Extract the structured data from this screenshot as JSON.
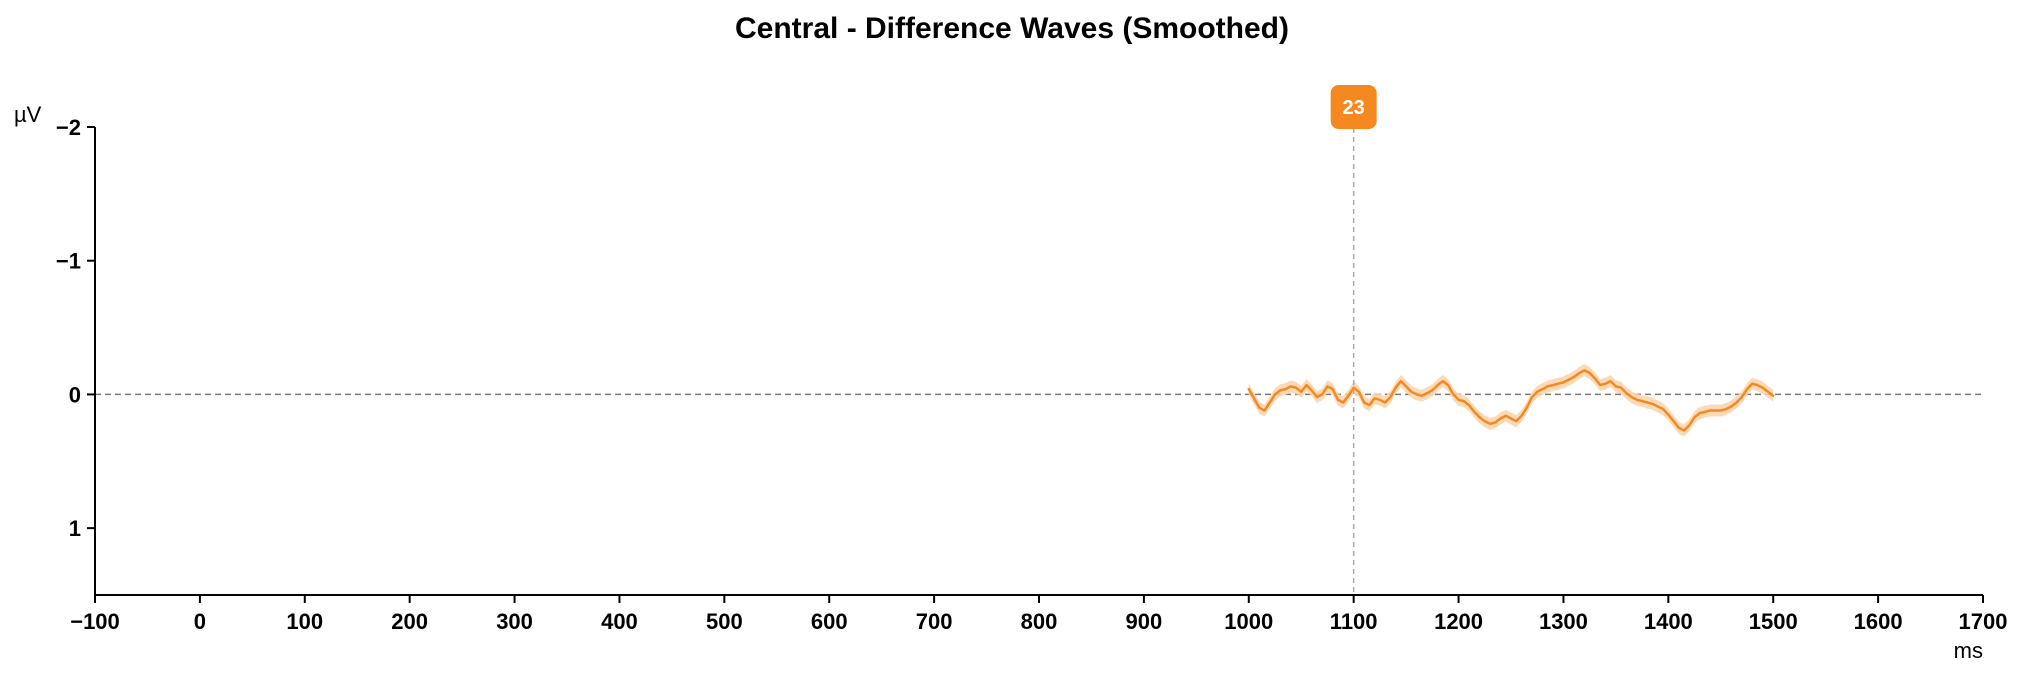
{
  "chart_data": {
    "type": "line",
    "title": "Central - Difference Waves (Smoothed)",
    "xlabel": "ms",
    "ylabel": "µV",
    "xlim": [
      -100,
      1700
    ],
    "ylim": [
      -2,
      1.5
    ],
    "y_inverted": true,
    "x_ticks": [
      -100,
      0,
      100,
      200,
      300,
      400,
      500,
      600,
      700,
      800,
      900,
      1000,
      1100,
      1200,
      1300,
      1400,
      1500,
      1600,
      1700
    ],
    "y_ticks": [
      -2,
      -1,
      0,
      1
    ],
    "y_tick_labels": [
      "−2",
      "−1",
      "0",
      "1"
    ],
    "x_tick_labels": [
      "−100",
      "0",
      "100",
      "200",
      "300",
      "400",
      "500",
      "600",
      "700",
      "800",
      "900",
      "1000",
      "1100",
      "1200",
      "1300",
      "1400",
      "1500",
      "1600",
      "1700"
    ],
    "zero_line": true,
    "grid": false,
    "marker": {
      "x": 1100,
      "label": "23",
      "color": "#f5891f"
    },
    "series": [
      {
        "color": "#f5891f",
        "band_color": "#fbd3ac",
        "x": [
          1000,
          1005,
          1010,
          1015,
          1020,
          1025,
          1030,
          1035,
          1040,
          1045,
          1050,
          1055,
          1060,
          1065,
          1070,
          1075,
          1080,
          1085,
          1090,
          1095,
          1100,
          1105,
          1110,
          1115,
          1120,
          1125,
          1130,
          1135,
          1140,
          1145,
          1150,
          1155,
          1160,
          1165,
          1170,
          1175,
          1180,
          1185,
          1190,
          1195,
          1200,
          1205,
          1210,
          1215,
          1220,
          1225,
          1230,
          1235,
          1240,
          1245,
          1250,
          1255,
          1260,
          1265,
          1270,
          1275,
          1280,
          1285,
          1290,
          1295,
          1300,
          1305,
          1310,
          1315,
          1320,
          1325,
          1330,
          1335,
          1340,
          1345,
          1350,
          1355,
          1360,
          1365,
          1370,
          1375,
          1380,
          1385,
          1390,
          1395,
          1400,
          1405,
          1410,
          1415,
          1420,
          1425,
          1430,
          1435,
          1440,
          1445,
          1450,
          1455,
          1460,
          1465,
          1470,
          1475,
          1480,
          1485,
          1490,
          1495,
          1500
        ],
        "values": [
          -0.04,
          0.03,
          0.1,
          0.12,
          0.06,
          0.0,
          -0.03,
          -0.04,
          -0.06,
          -0.05,
          -0.02,
          -0.07,
          -0.03,
          0.02,
          0.0,
          -0.06,
          -0.04,
          0.04,
          0.06,
          0.01,
          -0.05,
          -0.02,
          0.06,
          0.08,
          0.03,
          0.04,
          0.06,
          0.02,
          -0.05,
          -0.1,
          -0.06,
          -0.02,
          0.0,
          0.01,
          -0.01,
          -0.03,
          -0.07,
          -0.1,
          -0.07,
          0.0,
          0.04,
          0.05,
          0.08,
          0.13,
          0.17,
          0.2,
          0.22,
          0.21,
          0.18,
          0.16,
          0.18,
          0.2,
          0.16,
          0.1,
          0.02,
          -0.02,
          -0.04,
          -0.06,
          -0.07,
          -0.08,
          -0.09,
          -0.11,
          -0.13,
          -0.16,
          -0.18,
          -0.16,
          -0.12,
          -0.07,
          -0.08,
          -0.1,
          -0.06,
          -0.05,
          -0.01,
          0.02,
          0.04,
          0.05,
          0.06,
          0.07,
          0.09,
          0.11,
          0.15,
          0.2,
          0.25,
          0.27,
          0.23,
          0.17,
          0.14,
          0.13,
          0.12,
          0.12,
          0.12,
          0.11,
          0.09,
          0.06,
          0.02,
          -0.04,
          -0.08,
          -0.07,
          -0.05,
          -0.02,
          0.01
        ],
        "band_halfwidth": 0.045
      }
    ]
  }
}
